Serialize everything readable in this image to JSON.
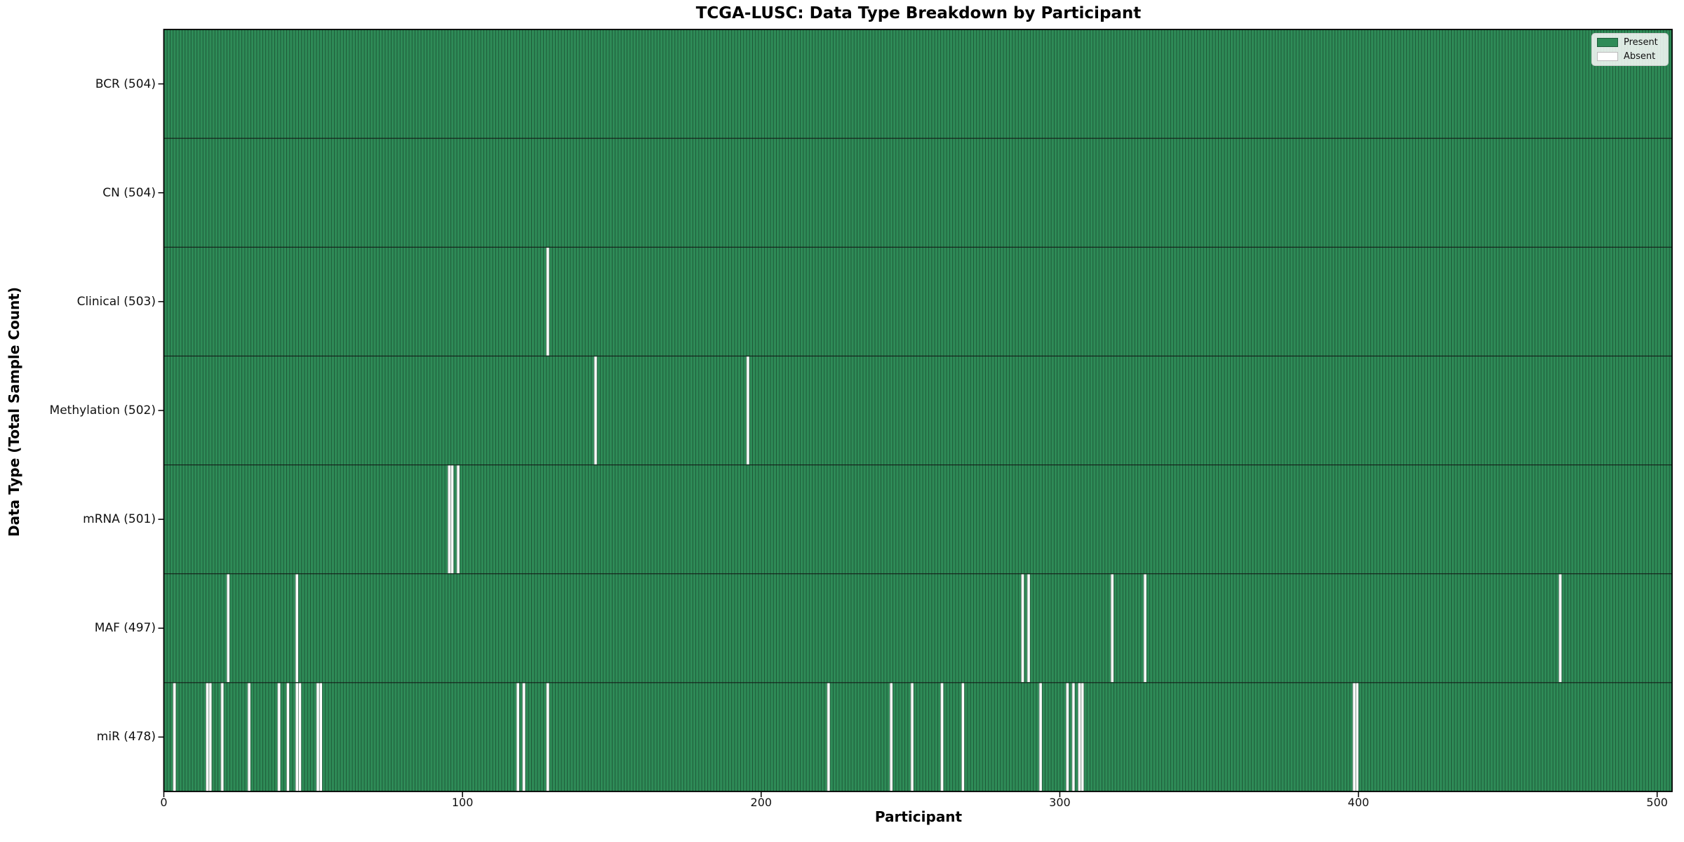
{
  "chart_data": {
    "type": "heatmap",
    "title": "TCGA-LUSC: Data Type Breakdown by Participant",
    "xlabel": "Participant",
    "ylabel": "Data Type (Total Sample Count)",
    "x_ticks": [
      0,
      100,
      200,
      300,
      400,
      500
    ],
    "x_max": 505,
    "n_participants": 504,
    "grid": false,
    "legend_position": "upper right",
    "legend": [
      {
        "label": "Present",
        "color": "#2e8b57"
      },
      {
        "label": "Absent",
        "color": "#ffffff"
      }
    ],
    "colors": {
      "present": "#2e8b57",
      "absent": "#ffffff",
      "bar_edge": "rgba(12,40,26,0.55)",
      "row_border": "#111111",
      "plot_border": "#000000"
    },
    "rows": [
      {
        "label": "BCR (504)",
        "data_type": "BCR",
        "total": 504,
        "absent_participants": []
      },
      {
        "label": "CN (504)",
        "data_type": "CN",
        "total": 504,
        "absent_participants": []
      },
      {
        "label": "Clinical (503)",
        "data_type": "Clinical",
        "total": 503,
        "absent_participants": [
          128
        ]
      },
      {
        "label": "Methylation (502)",
        "data_type": "Methylation",
        "total": 502,
        "absent_participants": [
          144,
          195
        ]
      },
      {
        "label": "mRNA (501)",
        "data_type": "mRNA",
        "total": 501,
        "absent_participants": [
          95,
          96,
          98
        ]
      },
      {
        "label": "MAF (497)",
        "data_type": "MAF",
        "total": 497,
        "absent_participants": [
          21,
          44,
          287,
          289,
          317,
          328,
          467
        ]
      },
      {
        "label": "miR (478)",
        "data_type": "miR",
        "total": 478,
        "absent_participants": [
          3,
          14,
          15,
          19,
          28,
          38,
          41,
          44,
          45,
          51,
          52,
          118,
          120,
          128,
          222,
          243,
          250,
          260,
          267,
          293,
          302,
          304,
          306,
          307,
          398,
          399
        ]
      }
    ]
  }
}
